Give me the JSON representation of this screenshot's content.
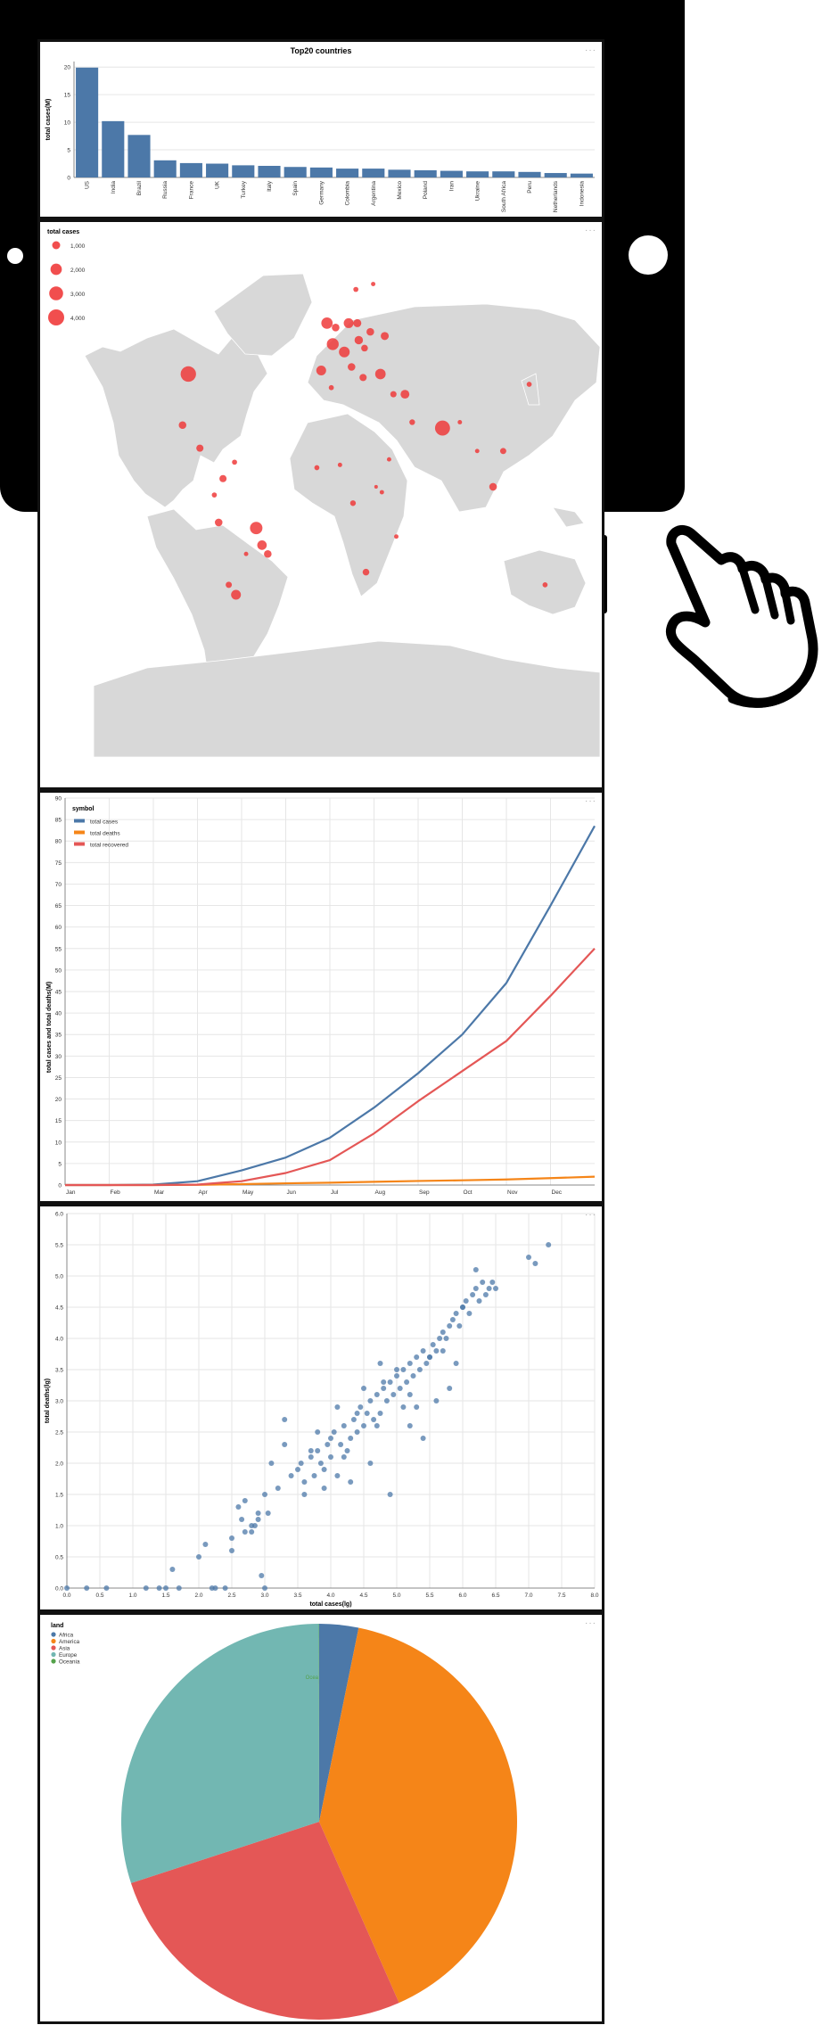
{
  "menu_dots": "···",
  "colors": {
    "bar": "#4c78a8",
    "cases": "#4c78a8",
    "deaths": "#f58518",
    "recovered": "#e45756",
    "bubble": "#ef3b3b",
    "land": "#d8d8d8",
    "grid": "#e6e6e6"
  },
  "bar_chart": {
    "title": "Top20 countries",
    "ylabel": "total cases(M)",
    "yticks": [
      "0",
      "5",
      "10",
      "15",
      "20"
    ]
  },
  "map": {
    "legend_title": "total cases",
    "legend_items": [
      "1,000",
      "2,000",
      "3,000",
      "4,000"
    ]
  },
  "line_chart": {
    "legend_title": "symbol",
    "ylabel": "total cases and total deaths(M)",
    "xticks": [
      "Jan",
      "Feb",
      "Mar",
      "Apr",
      "May",
      "Jun",
      "Jul",
      "Aug",
      "Sep",
      "Oct",
      "Nov",
      "Dec"
    ],
    "yticks": [
      "0",
      "5",
      "10",
      "15",
      "20",
      "25",
      "30",
      "35",
      "40",
      "45",
      "50",
      "55",
      "60",
      "65",
      "70",
      "75",
      "80",
      "85",
      "90"
    ]
  },
  "scatter": {
    "xlabel": "total cases(lg)",
    "ylabel": "total deaths(lg)",
    "xticks": [
      "0.0",
      "0.5",
      "1.0",
      "1.5",
      "2.0",
      "2.5",
      "3.0",
      "3.5",
      "4.0",
      "4.5",
      "5.0",
      "5.5",
      "6.0",
      "6.5",
      "7.0",
      "7.5",
      "8.0"
    ],
    "yticks": [
      "0.0",
      "0.5",
      "1.0",
      "1.5",
      "2.0",
      "2.5",
      "3.0",
      "3.5",
      "4.0",
      "4.5",
      "5.0",
      "5.5",
      "6.0"
    ]
  },
  "pie": {
    "legend_title": "land",
    "tooltip": "Ocea"
  },
  "chart_data": [
    {
      "type": "bar",
      "title": "Top20 countries",
      "xlabel": "",
      "ylabel": "total cases(M)",
      "ylim": [
        0,
        21
      ],
      "categories": [
        "US",
        "India",
        "Brazil",
        "Russia",
        "France",
        "UK",
        "Turkey",
        "Italy",
        "Spain",
        "Germany",
        "Colombia",
        "Argentina",
        "Mexico",
        "Poland",
        "Iran",
        "Ukraine",
        "South Africa",
        "Peru",
        "Netherlands",
        "Indonesia"
      ],
      "values": [
        19.9,
        10.2,
        7.7,
        3.1,
        2.6,
        2.5,
        2.2,
        2.1,
        1.9,
        1.8,
        1.6,
        1.6,
        1.4,
        1.3,
        1.2,
        1.1,
        1.1,
        1.0,
        0.8,
        0.7
      ]
    },
    {
      "type": "scatter",
      "title": "",
      "legend_title": "total cases",
      "legend": [
        "1,000",
        "2,000",
        "3,000",
        "4,000"
      ],
      "legend_sizes": [
        1000,
        2000,
        3000,
        4000
      ],
      "lon": [
        -98,
        -102,
        -74,
        -80,
        -51,
        -47,
        -43,
        -65,
        -70,
        -77,
        -58,
        -2,
        2,
        13,
        10,
        15,
        19,
        20,
        24,
        28,
        35,
        38,
        52,
        44,
        57,
        78,
        90,
        102,
        -6,
        4,
        18,
        30,
        23,
        32,
        46,
        113,
        120,
        138,
        -90,
        -66,
        -9,
        7,
        16,
        36,
        41,
        149,
        1,
        25
      ],
      "lat": [
        39,
        23,
        4,
        -2,
        -14,
        -20,
        -23,
        -36,
        -33,
        -12,
        -23,
        52,
        47,
        52,
        45,
        41,
        52,
        48,
        46,
        50,
        39,
        49,
        33,
        33,
        24,
        22,
        24,
        14,
        40,
        51,
        59,
        60,
        38,
        1,
        -17,
        1,
        14,
        36,
        15,
        10,
        8,
        9,
        -5,
        -1,
        11,
        -33,
        35,
        -29
      ],
      "values": [
        3700,
        900,
        800,
        400,
        2400,
        1400,
        900,
        1500,
        600,
        900,
        300,
        2000,
        2200,
        1500,
        1800,
        900,
        1000,
        1100,
        700,
        900,
        1700,
        1000,
        1200,
        600,
        500,
        3500,
        300,
        300,
        1500,
        900,
        400,
        300,
        800,
        200,
        300,
        900,
        600,
        400,
        800,
        400,
        400,
        300,
        500,
        300,
        300,
        400,
        400,
        700
      ]
    },
    {
      "type": "line",
      "title": "",
      "xlabel": "",
      "ylabel": "total cases and total deaths(M)",
      "ylim": [
        0,
        90
      ],
      "x": [
        "Jan",
        "Feb",
        "Mar",
        "Apr",
        "May",
        "Jun",
        "Jul",
        "Aug",
        "Sep",
        "Oct",
        "Nov",
        "Dec",
        "Dec 31"
      ],
      "series": [
        {
          "name": "total cases",
          "values": [
            0,
            0,
            0.1,
            0.9,
            3.4,
            6.4,
            11,
            18,
            26,
            35,
            47,
            65,
            83.5
          ]
        },
        {
          "name": "total deaths",
          "values": [
            0,
            0,
            0,
            0.05,
            0.2,
            0.4,
            0.55,
            0.75,
            0.95,
            1.1,
            1.3,
            1.6,
            1.95
          ]
        },
        {
          "name": "total recovered",
          "values": [
            0,
            0,
            0,
            0.1,
            0.9,
            2.8,
            5.8,
            12,
            19.5,
            26.5,
            33.5,
            44,
            55
          ]
        }
      ]
    },
    {
      "type": "scatter",
      "title": "",
      "xlabel": "total cases(lg)",
      "ylabel": "total deaths(lg)",
      "xlim": [
        0,
        8
      ],
      "ylim": [
        0,
        6
      ],
      "x": [
        0.0,
        0.3,
        0.6,
        1.2,
        1.4,
        1.5,
        1.6,
        2.0,
        2.1,
        2.5,
        2.7,
        2.8,
        2.95,
        3.0,
        3.05,
        1.7,
        2.2,
        2.25,
        2.4,
        2.5,
        2.6,
        2.65,
        2.7,
        2.8,
        2.85,
        2.9,
        3.0,
        3.2,
        3.3,
        3.4,
        3.5,
        3.55,
        3.6,
        3.7,
        3.75,
        3.8,
        3.85,
        3.9,
        3.95,
        4.0,
        4.05,
        4.1,
        4.15,
        4.2,
        4.25,
        4.3,
        4.35,
        4.4,
        4.45,
        4.5,
        4.55,
        4.6,
        4.65,
        4.7,
        4.75,
        4.8,
        4.85,
        4.9,
        4.95,
        5.0,
        5.05,
        5.1,
        5.15,
        5.2,
        5.25,
        5.3,
        5.35,
        5.4,
        5.45,
        5.5,
        5.55,
        5.6,
        5.65,
        5.7,
        5.75,
        5.8,
        5.85,
        5.9,
        5.95,
        6.0,
        6.05,
        6.1,
        6.15,
        6.2,
        6.25,
        6.3,
        6.35,
        6.4,
        6.45,
        6.5,
        7.0,
        7.1,
        7.3,
        3.3,
        3.6,
        3.8,
        3.9,
        4.2,
        4.3,
        4.6,
        4.7,
        4.9,
        5.1,
        5.2,
        5.3,
        5.4,
        5.6,
        5.7,
        5.8,
        5.9,
        6.0,
        6.2,
        3.7,
        4.0,
        4.4,
        4.8,
        5.0,
        5.2,
        5.5,
        2.9,
        3.1,
        4.1,
        4.5,
        4.75
      ],
      "y": [
        0,
        0,
        0,
        0,
        0,
        0,
        0.3,
        0.5,
        0.7,
        0.6,
        0.9,
        1.0,
        0.2,
        0.0,
        1.2,
        0,
        0,
        0,
        0,
        0.8,
        1.3,
        1.1,
        1.4,
        0.9,
        1.0,
        1.2,
        1.5,
        1.6,
        2.7,
        1.8,
        1.9,
        2.0,
        1.7,
        2.1,
        1.8,
        2.2,
        2.0,
        1.9,
        2.3,
        2.1,
        2.5,
        1.8,
        2.3,
        2.6,
        2.2,
        2.4,
        2.7,
        2.5,
        2.9,
        2.6,
        2.8,
        3.0,
        2.7,
        3.1,
        2.8,
        3.2,
        3.0,
        3.3,
        3.1,
        3.4,
        3.2,
        3.5,
        3.3,
        3.6,
        3.4,
        3.7,
        3.5,
        3.8,
        3.6,
        3.7,
        3.9,
        3.8,
        4.0,
        4.1,
        4.0,
        4.2,
        4.3,
        4.4,
        4.2,
        4.5,
        4.6,
        4.4,
        4.7,
        4.8,
        4.6,
        4.9,
        4.7,
        4.8,
        4.9,
        4.8,
        5.3,
        5.2,
        5.5,
        2.3,
        1.5,
        2.5,
        1.6,
        2.1,
        1.7,
        2.0,
        2.6,
        1.5,
        2.9,
        3.1,
        2.9,
        2.4,
        3.0,
        3.8,
        3.2,
        3.6,
        4.5,
        5.1,
        2.2,
        2.4,
        2.8,
        3.3,
        3.5,
        2.6,
        3.7,
        1.1,
        2.0,
        2.9,
        3.2,
        3.6
      ]
    },
    {
      "type": "pie",
      "title": "",
      "legend_title": "land",
      "categories": [
        "Africa",
        "America",
        "Asia",
        "Europe",
        "Oceania"
      ],
      "values": [
        3.2,
        40.2,
        26.6,
        30.0,
        0.03
      ],
      "colors": [
        "#4c78a8",
        "#f58518",
        "#e45756",
        "#72b7b2",
        "#54a24b"
      ]
    }
  ]
}
